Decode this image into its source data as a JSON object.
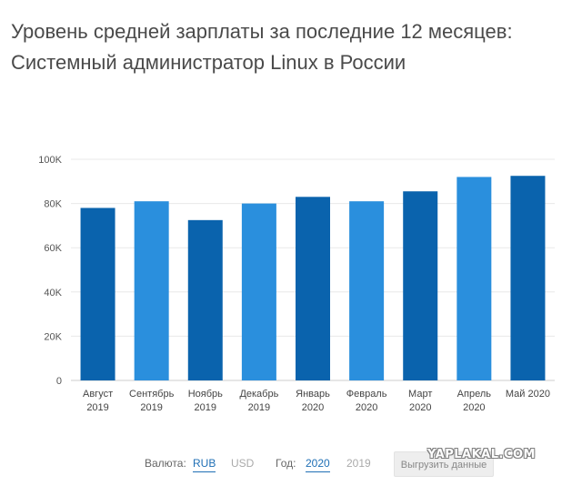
{
  "title": {
    "line1": "Уровень средней зарплаты за последние 12 месяцев:",
    "line2": "Системный администратор Linux в России"
  },
  "chart_data": {
    "type": "bar",
    "categories": [
      [
        "Август",
        "2019"
      ],
      [
        "Сентябрь",
        "2019"
      ],
      [
        "Ноябрь",
        "2019"
      ],
      [
        "Декабрь",
        "2019"
      ],
      [
        "Январь",
        "2020"
      ],
      [
        "Февраль",
        "2020"
      ],
      [
        "Март",
        "2020"
      ],
      [
        "Апрель",
        "2020"
      ],
      [
        "Май 2020"
      ]
    ],
    "values": [
      78000,
      81000,
      72500,
      80000,
      83000,
      81000,
      85500,
      92000,
      92500
    ],
    "y_ticks": [
      "0",
      "20K",
      "40K",
      "60K",
      "80K",
      "100K"
    ],
    "ylim": [
      0,
      100000
    ],
    "grid": true,
    "colors": [
      "#0a63ad",
      "#2a8fdd",
      "#0a63ad",
      "#2a8fdd",
      "#0a63ad",
      "#2a8fdd",
      "#0a63ad",
      "#2a8fdd",
      "#0a63ad"
    ]
  },
  "controls": {
    "currency_label": "Валюта:",
    "currency_options": [
      "RUB",
      "USD"
    ],
    "currency_selected": "RUB",
    "year_label": "Год:",
    "year_options": [
      "2020",
      "2019"
    ],
    "year_selected": "2020",
    "export_label": "Выгрузить данные"
  },
  "watermark": "YAPLAKAL.COM"
}
